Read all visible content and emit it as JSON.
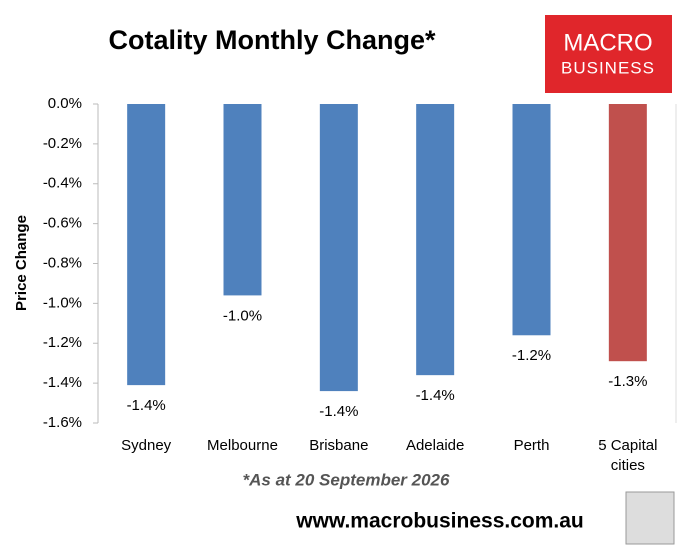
{
  "chart_data": {
    "type": "bar",
    "title": "Cotality Monthly Change*",
    "y_label": "Price Change",
    "categories": [
      "Sydney",
      "Melbourne",
      "Brisbane",
      "Adelaide",
      "Perth",
      "5 Capital cities"
    ],
    "values": [
      -1.41,
      -0.96,
      -1.44,
      -1.36,
      -1.16,
      -1.29
    ],
    "value_labels": [
      "-1.4%",
      "-1.0%",
      "-1.4%",
      "-1.4%",
      "-1.2%",
      "-1.3%"
    ],
    "colors": [
      "#4f81bd",
      "#4f81bd",
      "#4f81bd",
      "#4f81bd",
      "#4f81bd",
      "#c0504d"
    ],
    "ylim": [
      -1.6,
      0
    ],
    "yticks": [
      {
        "value": 0,
        "label": "0.0%"
      },
      {
        "value": -0.2,
        "label": "-0.2%"
      },
      {
        "value": -0.4,
        "label": "-0.4%"
      },
      {
        "value": -0.6,
        "label": "-0.6%"
      },
      {
        "value": -0.8,
        "label": "-0.8%"
      },
      {
        "value": -1.0,
        "label": "-1.0%"
      },
      {
        "value": -1.2,
        "label": "-1.2%"
      },
      {
        "value": -1.4,
        "label": "-1.4%"
      },
      {
        "value": -1.6,
        "label": "-1.6%"
      }
    ],
    "footnote": "*As at 20 September 2026",
    "logo": {
      "line1": "MACRO",
      "line2": "BUSINESS"
    },
    "website": "www.macrobusiness.com.au"
  }
}
